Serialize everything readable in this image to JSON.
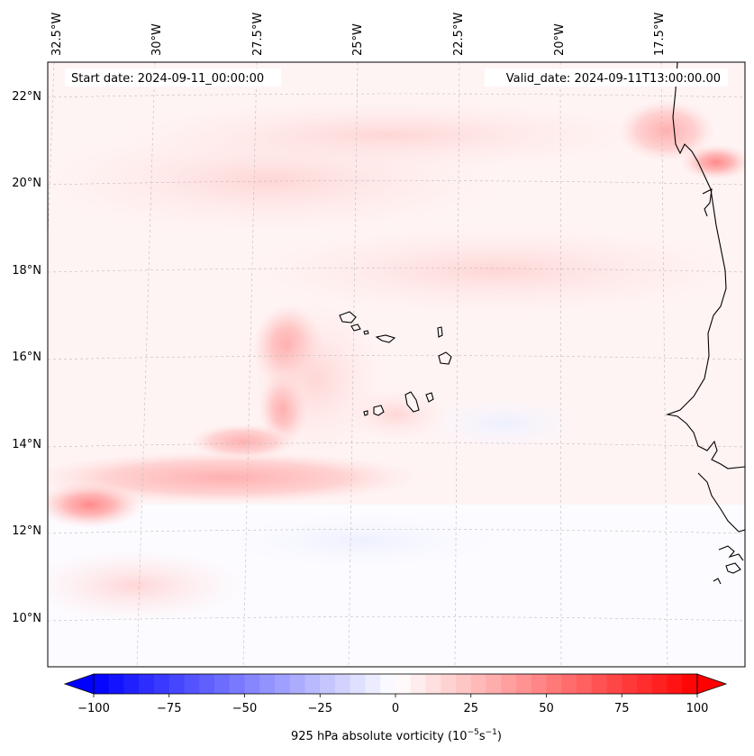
{
  "map": {
    "start_date": "Start date: 2024-09-11_00:00:00",
    "valid_date": "Valid_date: 2024-09-11T13:00:00.00",
    "longitude_labels": [
      "32.5°W",
      "30°W",
      "27.5°W",
      "25°W",
      "22.5°W",
      "20°W",
      "17.5°W"
    ],
    "latitude_labels": [
      "22°N",
      "20°N",
      "18°N",
      "16°N",
      "14°N",
      "12°N",
      "10°N"
    ],
    "features": [
      "Cape Verde islands",
      "West African coastline"
    ]
  },
  "colorbar": {
    "title_prefix": "925 hPa absolute vorticity (10",
    "title_exp1": "−5",
    "title_mid": "s",
    "title_exp2": "−1",
    "title_suffix": ")",
    "min": -100,
    "max": 100,
    "step": 5,
    "ticks": [
      -100,
      -75,
      -50,
      -25,
      0,
      25,
      50,
      75,
      100
    ],
    "tick_labels": [
      "−100",
      "−75",
      "−50",
      "−25",
      "0",
      "25",
      "50",
      "75",
      "100"
    ],
    "colormap": "bwr",
    "low_color": "#0000ff",
    "mid_color": "#ffffff",
    "high_color": "#ff0000"
  }
}
